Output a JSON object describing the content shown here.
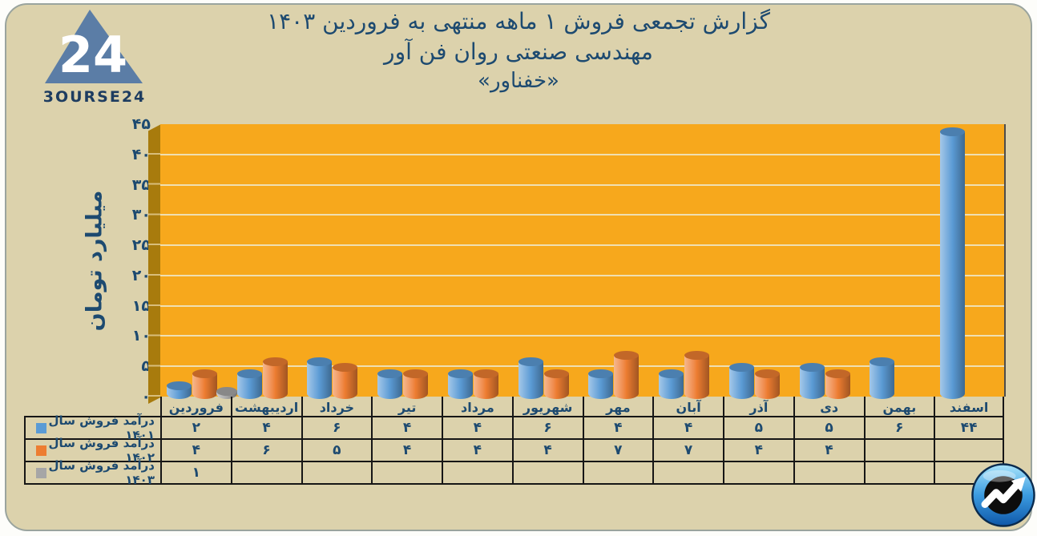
{
  "logo": {
    "numeral": "24",
    "brand": "3OURSE24"
  },
  "header": {
    "line1": "گزارش تجمعی فروش ۱ ماهه منتهی به فروردین ۱۴۰۳",
    "line2": "مهندسی صنعتی روان فن آور",
    "line3": "«خفناور»"
  },
  "chart_data": {
    "type": "bar",
    "title": "گزارش تجمعی فروش ۱ ماهه منتهی به فروردین ۱۴۰۳ - مهندسی صنعتی روان فن آور «خفناور»",
    "xlabel": "",
    "ylabel": "میلیارد تومان",
    "ylim": [
      0,
      45
    ],
    "ytick_step": 5,
    "grid": true,
    "legend_position": "table-left",
    "plot_bg_color": "#F7A81C",
    "wall_color": "#A87B0D",
    "text_color": "#1d4a70",
    "yticks_fa": [
      "۴۵",
      "۴۰",
      "۳۵",
      "۳۰",
      "۲۵",
      "۲۰",
      "۱۵",
      "۱۰",
      "۵",
      "۰"
    ],
    "categories_fa": [
      "فروردین",
      "اردیبهشت",
      "خرداد",
      "تیر",
      "مرداد",
      "شهریور",
      "مهر",
      "آبان",
      "آذر",
      "دی",
      "بهمن",
      "اسفند"
    ],
    "series": [
      {
        "name_fa": "درآمد فروش سال ۱۴۰۱",
        "color": "#5B9BD5",
        "values": [
          2,
          4,
          6,
          4,
          4,
          6,
          4,
          4,
          5,
          5,
          6,
          44
        ],
        "values_fa": [
          "۲",
          "۴",
          "۶",
          "۴",
          "۴",
          "۶",
          "۴",
          "۴",
          "۵",
          "۵",
          "۶",
          "۴۴"
        ]
      },
      {
        "name_fa": "درآمد فروش سال ۱۴۰۲",
        "color": "#ED7D31",
        "values": [
          4,
          6,
          5,
          4,
          4,
          4,
          7,
          7,
          4,
          4,
          null,
          null
        ],
        "values_fa": [
          "۴",
          "۶",
          "۵",
          "۴",
          "۴",
          "۴",
          "۷",
          "۷",
          "۴",
          "۴",
          "",
          ""
        ]
      },
      {
        "name_fa": "درآمد فروش سال ۱۴۰۳",
        "color": "#A6A6A6",
        "values": [
          1,
          null,
          null,
          null,
          null,
          null,
          null,
          null,
          null,
          null,
          null,
          null
        ],
        "values_fa": [
          "۱",
          "",
          "",
          "",
          "",
          "",
          "",
          "",
          "",
          "",
          "",
          ""
        ]
      }
    ]
  }
}
